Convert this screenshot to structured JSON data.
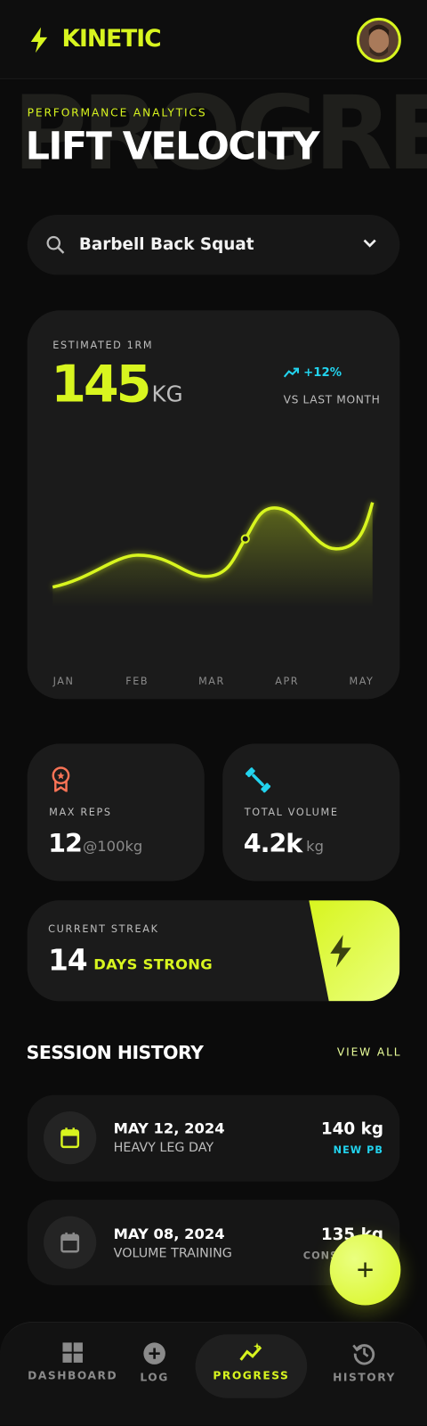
{
  "header": {
    "brand": "KINETIC"
  },
  "hero": {
    "watermark": "PROGRESS",
    "eyebrow": "PERFORMANCE ANALYTICS",
    "title": "LIFT VELOCITY"
  },
  "exercise_select": {
    "value": "Barbell Back Squat"
  },
  "estimate_card": {
    "label": "ESTIMATED 1RM",
    "value": "145",
    "unit": "KG",
    "change": "+12%",
    "change_label": "VS LAST MONTH",
    "months": [
      "JAN",
      "FEB",
      "MAR",
      "APR",
      "MAY"
    ]
  },
  "stats": [
    {
      "label": "MAX REPS",
      "value": "12",
      "detail": "@100kg"
    },
    {
      "label": "TOTAL VOLUME",
      "value": "4.2k",
      "detail": "kg"
    }
  ],
  "streak": {
    "label": "CURRENT STREAK",
    "value": "14",
    "detail": "DAYS STRONG"
  },
  "session_history": {
    "title": "SESSION HISTORY",
    "action": "VIEW ALL",
    "sessions": [
      {
        "date": "MAY 12, 2024",
        "name": "HEAVY LEG DAY",
        "weight": "140 kg",
        "tag": "NEW PB"
      },
      {
        "date": "MAY 08, 2024",
        "name": "VOLUME TRAINING",
        "weight": "135 kg",
        "tag": "CONSISTENT"
      }
    ]
  },
  "nav": {
    "items": [
      "DASHBOARD",
      "LOG",
      "PROGRESS",
      "HISTORY"
    ],
    "active": 2
  }
}
